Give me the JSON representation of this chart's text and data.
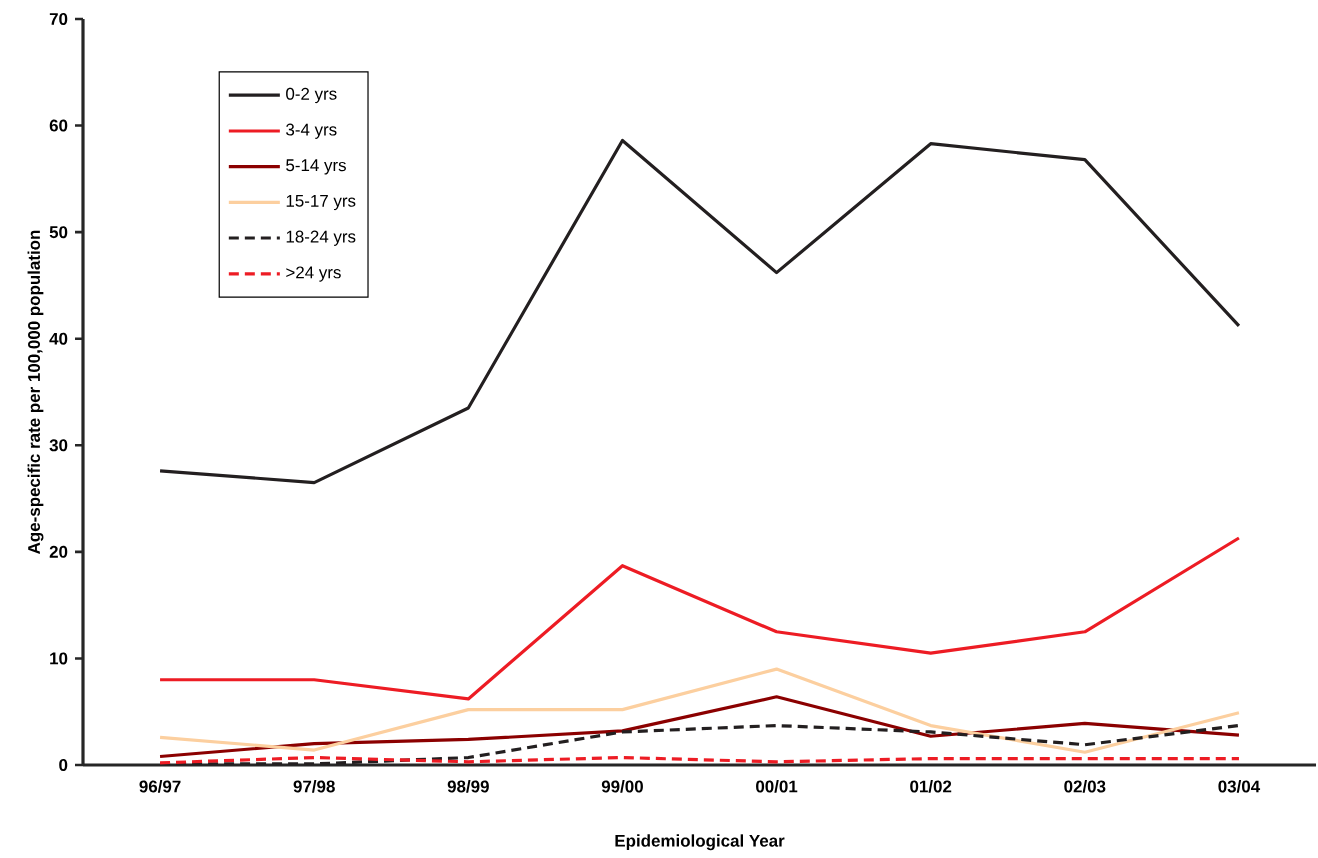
{
  "chart_data": {
    "type": "line",
    "xlabel": "Epidemiological Year",
    "ylabel": "Age-specific rate per 100,000 population",
    "categories": [
      "96/97",
      "97/98",
      "98/99",
      "99/00",
      "00/01",
      "01/02",
      "02/03",
      "03/04"
    ],
    "ylim": [
      0,
      70
    ],
    "yticks": [
      0,
      10,
      20,
      30,
      40,
      50,
      60,
      70
    ],
    "grid": false,
    "legend": "top left",
    "marker": "none",
    "series": [
      {
        "name": "0-2 yrs",
        "color": "#231f20",
        "line_style": "solid",
        "values": [
          27.6,
          26.5,
          33.5,
          58.6,
          46.2,
          58.3,
          56.8,
          41.2
        ]
      },
      {
        "name": "3-4 yrs",
        "color": "#ed1c24",
        "line_style": "solid",
        "values": [
          8.0,
          8.0,
          6.2,
          18.7,
          12.5,
          10.5,
          12.5,
          21.3
        ]
      },
      {
        "name": "5-14 yrs",
        "color": "#8b0000",
        "line_style": "solid",
        "values": [
          0.8,
          2.0,
          2.4,
          3.2,
          6.4,
          2.7,
          3.9,
          2.8
        ]
      },
      {
        "name": "15-17 yrs",
        "color": "#fccf9f",
        "line_style": "solid",
        "values": [
          2.6,
          1.4,
          5.2,
          5.2,
          9.0,
          3.7,
          1.2,
          4.9
        ]
      },
      {
        "name": "18-24 yrs",
        "color": "#231f20",
        "line_style": "dashed",
        "values": [
          0.1,
          0.1,
          0.7,
          3.1,
          3.7,
          3.1,
          1.9,
          3.7
        ]
      },
      {
        "name": ">24 yrs",
        "color": "#ed1c24",
        "line_style": "dashed",
        "values": [
          0.2,
          0.7,
          0.3,
          0.7,
          0.3,
          0.6,
          0.6,
          0.6
        ]
      }
    ]
  }
}
